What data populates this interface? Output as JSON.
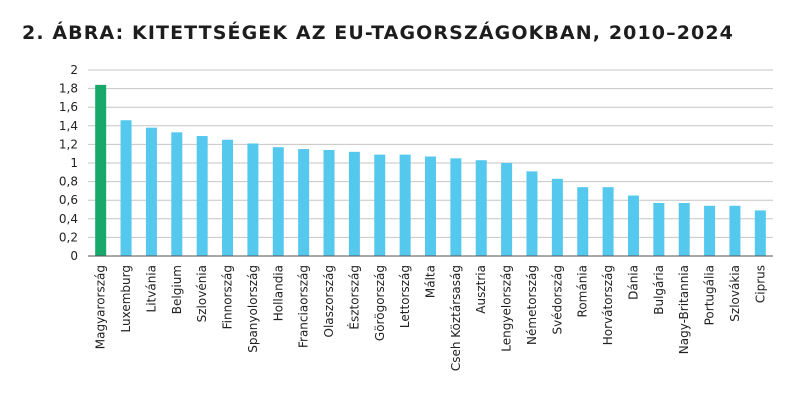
{
  "figure_title": "2. ÁBRA: KITETTSÉGEK AZ EU-TAGORSZÁGOKBAN, 2010–2024",
  "colors": {
    "highlight": "#17a86a",
    "bar": "#55c8ee",
    "grid": "#c6c6c6",
    "axis": "#555555"
  },
  "chart_data": {
    "type": "bar",
    "title": "2. ÁBRA: KITETTSÉGEK AZ EU-TAGORSZÁGOKBAN, 2010–2024",
    "xlabel": "",
    "ylabel": "",
    "ylim": [
      0,
      2
    ],
    "yticks": [
      "0",
      "0,2",
      "0,4",
      "0,6",
      "0,8",
      "1",
      "1,2",
      "1,4",
      "1,6",
      "1,8",
      "2"
    ],
    "grid": true,
    "categories": [
      "Magyarország",
      "Luxemburg",
      "Litvánia",
      "Belgium",
      "Szlovénia",
      "Finnország",
      "Spanyolország",
      "Hollandia",
      "Franciaország",
      "Olaszország",
      "Észtország",
      "Görögország",
      "Lettország",
      "Málta",
      "Cseh Köztársaság",
      "Ausztria",
      "Lengyelország",
      "Németország",
      "Svédország",
      "Románia",
      "Horvátország",
      "Dánia",
      "Bulgária",
      "Nagy-Britannia",
      "Portugália",
      "Szlovákia",
      "Ciprus"
    ],
    "values": [
      1.84,
      1.46,
      1.38,
      1.33,
      1.29,
      1.25,
      1.21,
      1.17,
      1.15,
      1.14,
      1.12,
      1.09,
      1.09,
      1.07,
      1.05,
      1.03,
      1.0,
      0.91,
      0.83,
      0.74,
      0.74,
      0.65,
      0.57,
      0.57,
      0.54,
      0.54,
      0.49
    ],
    "highlight_index": 0
  }
}
